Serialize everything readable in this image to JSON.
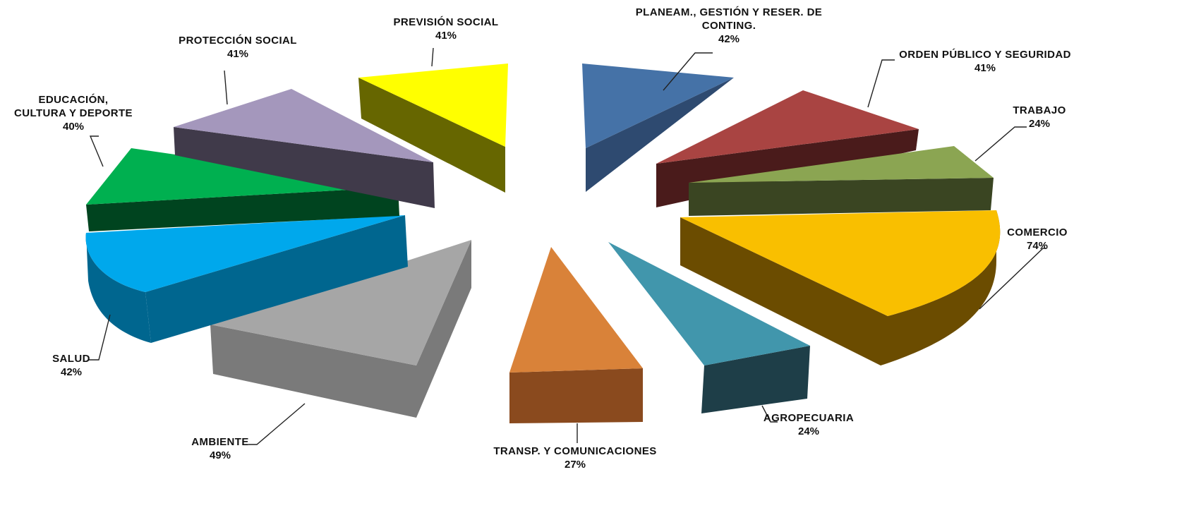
{
  "chart_data": {
    "type": "pie",
    "title": "",
    "style": "exploded-3d",
    "legend": "none",
    "slices": [
      {
        "label_lines": [
          "PLANEAM., GESTIÓN Y RESER. DE",
          "CONTING."
        ],
        "value_label": "42%",
        "value": 42,
        "color": "#4572A7",
        "side_color": "#2E4A70"
      },
      {
        "label_lines": [
          "ORDEN PÚBLICO Y SEGURIDAD"
        ],
        "value_label": "41%",
        "value": 41,
        "color": "#A94442",
        "side_color": "#4A1B1B"
      },
      {
        "label_lines": [
          "TRABAJO"
        ],
        "value_label": "24%",
        "value": 24,
        "color": "#8BA552",
        "side_color": "#3A4522"
      },
      {
        "label_lines": [
          "COMERCIO"
        ],
        "value_label": "74%",
        "value": 74,
        "color": "#F9BF00",
        "side_color": "#6B4C00"
      },
      {
        "label_lines": [
          "AGROPECUARIA"
        ],
        "value_label": "24%",
        "value": 24,
        "color": "#4196AC",
        "side_color": "#1E3E48"
      },
      {
        "label_lines": [
          "TRANSP. Y COMUNICACIONES"
        ],
        "value_label": "27%",
        "value": 27,
        "color": "#D98239",
        "side_color": "#8A4A1E"
      },
      {
        "label_lines": [
          "AMBIENTE"
        ],
        "value_label": "49%",
        "value": 49,
        "color": "#A6A6A6",
        "side_color": "#7A7A7A"
      },
      {
        "label_lines": [
          "SALUD"
        ],
        "value_label": "42%",
        "value": 42,
        "color": "#00A8EC",
        "side_color": "#00668F"
      },
      {
        "label_lines": [
          "EDUCACIÓN,",
          "CULTURA Y DEPORTE"
        ],
        "value_label": "40%",
        "value": 40,
        "color": "#00B050",
        "side_color": "#00441F"
      },
      {
        "label_lines": [
          "PROTECCIÓN SOCIAL"
        ],
        "value_label": "41%",
        "value": 41,
        "color": "#A497BC",
        "side_color": "#403A4A"
      },
      {
        "label_lines": [
          "PREVISIÓN SOCIAL"
        ],
        "value_label": "41%",
        "value": 41,
        "color": "#FFFF00",
        "side_color": "#666600"
      }
    ]
  }
}
